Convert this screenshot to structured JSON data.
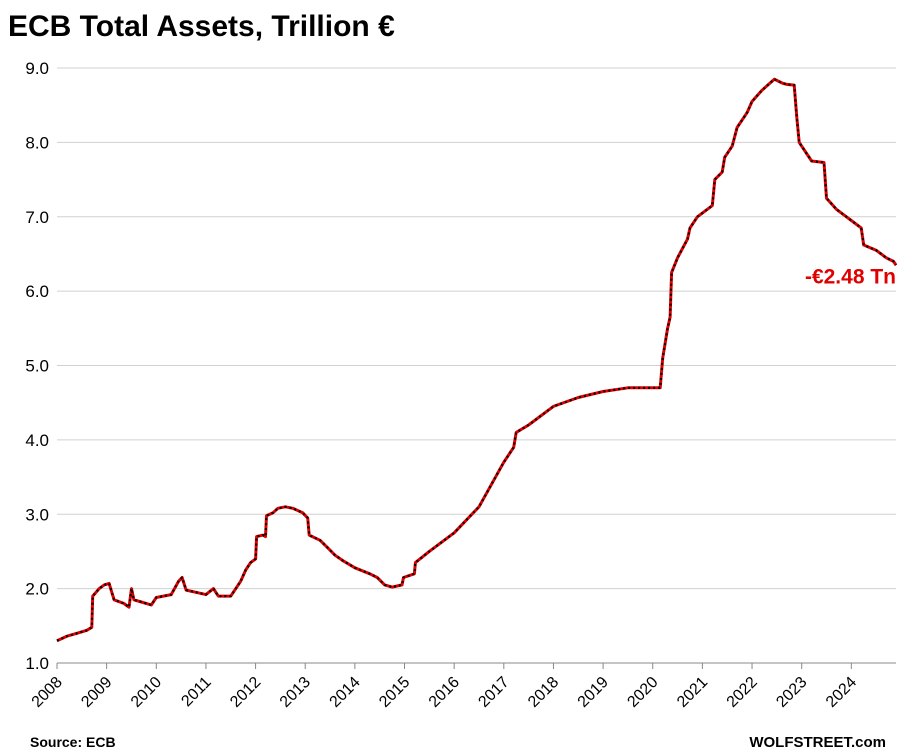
{
  "chart_data": {
    "type": "line",
    "title": "ECB Total Assets, Trillion €",
    "xlabel": "",
    "ylabel": "",
    "xlim": [
      2008,
      2024.9
    ],
    "ylim": [
      1.0,
      9.0
    ],
    "grid": true,
    "y_ticks": [
      "9.0",
      "8.0",
      "7.0",
      "6.0",
      "5.0",
      "4.0",
      "3.0",
      "2.0",
      "1.0"
    ],
    "x_ticks": [
      "2008",
      "2009",
      "2010",
      "2011",
      "2012",
      "2013",
      "2014",
      "2015",
      "2016",
      "2017",
      "2018",
      "2019",
      "2020",
      "2021",
      "2022",
      "2023",
      "2024"
    ],
    "series": [
      {
        "line_color": "#e00000",
        "marker_color": "#000000",
        "x": [
          2008.0,
          2008.2,
          2008.4,
          2008.6,
          2008.7,
          2008.72,
          2008.85,
          2008.95,
          2009.05,
          2009.15,
          2009.35,
          2009.45,
          2009.5,
          2009.55,
          2009.7,
          2009.9,
          2010.0,
          2010.3,
          2010.45,
          2010.52,
          2010.6,
          2010.8,
          2011.0,
          2011.15,
          2011.25,
          2011.5,
          2011.7,
          2011.8,
          2011.9,
          2012.0,
          2012.02,
          2012.15,
          2012.2,
          2012.22,
          2012.35,
          2012.45,
          2012.6,
          2012.75,
          2012.95,
          2013.05,
          2013.08,
          2013.3,
          2013.45,
          2013.6,
          2013.75,
          2014.0,
          2014.3,
          2014.45,
          2014.6,
          2014.75,
          2014.95,
          2014.98,
          2015.2,
          2015.22,
          2015.5,
          2016.0,
          2016.5,
          2017.0,
          2017.2,
          2017.25,
          2017.5,
          2018.0,
          2018.5,
          2019.0,
          2019.5,
          2020.0,
          2020.15,
          2020.2,
          2020.3,
          2020.35,
          2020.38,
          2020.5,
          2020.7,
          2020.75,
          2020.9,
          2021.2,
          2021.25,
          2021.4,
          2021.45,
          2021.6,
          2021.7,
          2021.9,
          2022.0,
          2022.2,
          2022.4,
          2022.45,
          2022.6,
          2022.7,
          2022.85,
          2022.9,
          2022.95,
          2023.1,
          2023.2,
          2023.45,
          2023.5,
          2023.7,
          2023.9,
          2024.0,
          2024.2,
          2024.25,
          2024.5,
          2024.7,
          2024.85,
          2024.9
        ],
        "y": [
          1.3,
          1.36,
          1.4,
          1.44,
          1.48,
          1.9,
          2.0,
          2.05,
          2.07,
          1.85,
          1.8,
          1.75,
          2.0,
          1.85,
          1.82,
          1.78,
          1.88,
          1.92,
          2.1,
          2.15,
          1.98,
          1.95,
          1.92,
          2.0,
          1.9,
          1.9,
          2.1,
          2.25,
          2.35,
          2.4,
          2.7,
          2.72,
          2.7,
          2.98,
          3.02,
          3.08,
          3.1,
          3.08,
          3.02,
          2.95,
          2.72,
          2.65,
          2.55,
          2.45,
          2.38,
          2.28,
          2.2,
          2.15,
          2.05,
          2.02,
          2.05,
          2.15,
          2.2,
          2.35,
          2.5,
          2.75,
          3.1,
          3.7,
          3.9,
          4.1,
          4.2,
          4.45,
          4.57,
          4.65,
          4.7,
          4.7,
          4.7,
          5.1,
          5.5,
          5.65,
          6.25,
          6.45,
          6.7,
          6.85,
          7.0,
          7.15,
          7.5,
          7.6,
          7.8,
          7.95,
          8.2,
          8.4,
          8.55,
          8.7,
          8.82,
          8.85,
          8.8,
          8.78,
          8.77,
          8.35,
          8.0,
          7.85,
          7.75,
          7.73,
          7.25,
          7.1,
          7.0,
          6.95,
          6.85,
          6.62,
          6.55,
          6.45,
          6.4,
          6.35
        ]
      }
    ],
    "annotation": {
      "text": "-€2.48 Tn",
      "color": "#e00000",
      "x": 2024.9,
      "y": 6.1
    }
  },
  "footer": {
    "source": "Source: ECB",
    "brand": "WOLFSTREET.com"
  }
}
